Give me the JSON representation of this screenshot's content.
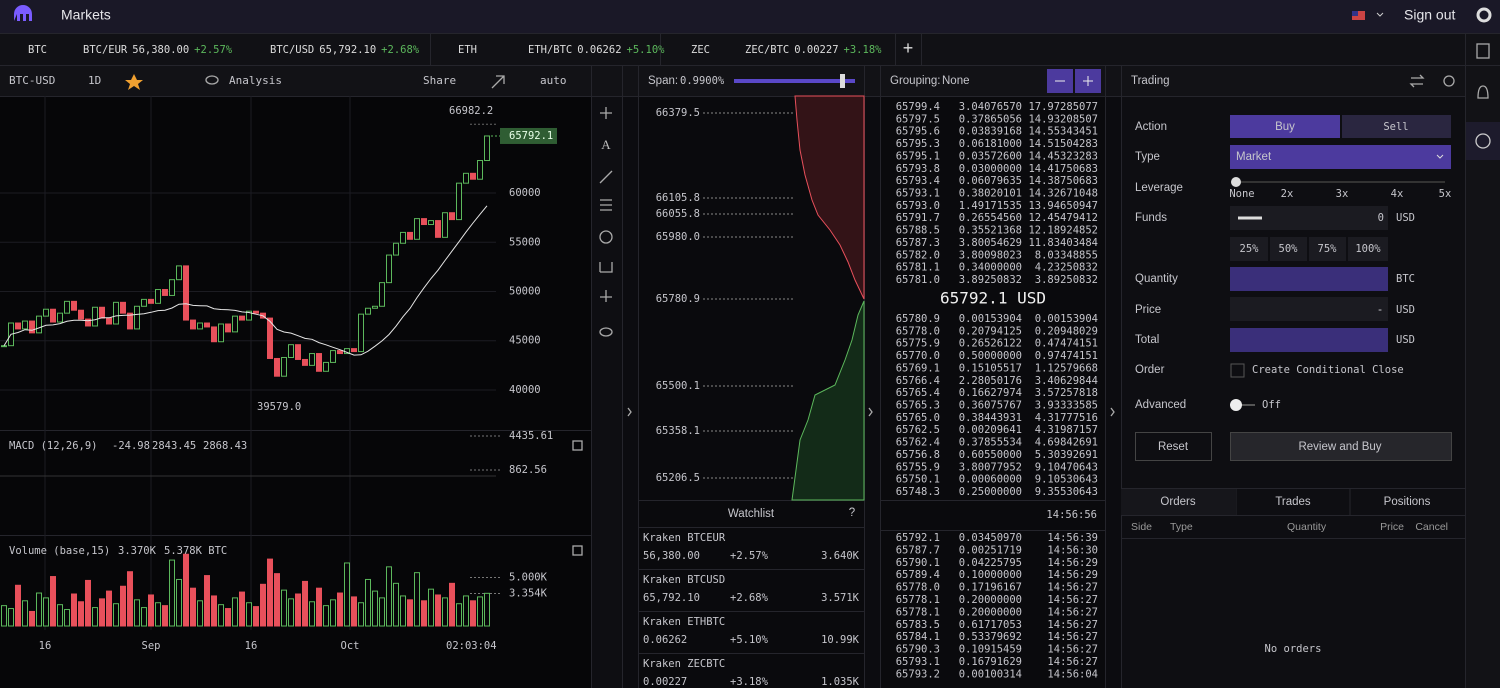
{
  "header": {
    "title": "Markets",
    "sign_out": "Sign out"
  },
  "tickers": [
    {
      "label": "BTC"
    },
    {
      "label": "BTC/EUR",
      "price": "56,380.00",
      "change": "+2.57%"
    },
    {
      "label": "BTC/USD",
      "price": "65,792.10",
      "change": "+2.68%"
    },
    {
      "label": "ETH"
    },
    {
      "label": "ETH/BTC",
      "price": "0.06262",
      "change": "+5.10%"
    },
    {
      "label": "ZEC"
    },
    {
      "label": "ZEC/BTC",
      "price": "0.00227",
      "change": "+3.18%"
    }
  ],
  "chart_toolbar": {
    "pair": "BTC-USD",
    "interval": "1D",
    "analysis": "Analysis",
    "share": "Share",
    "scale": "auto"
  },
  "price_chart": {
    "type": "candlestick",
    "up_color": "#5cb85c",
    "down_color": "#e8505b",
    "close": [
      44500,
      46800,
      46200,
      47000,
      45800,
      47500,
      48200,
      46900,
      47800,
      49000,
      48100,
      47200,
      46500,
      48400,
      47300,
      46700,
      48900,
      47800,
      46200,
      48500,
      49200,
      48800,
      50200,
      49600,
      51200,
      52600,
      47100,
      46200,
      46800,
      46400,
      44900,
      46700,
      45900,
      47500,
      47100,
      48000,
      47800,
      47300,
      43200,
      41400,
      43300,
      44600,
      43100,
      42500,
      43700,
      41900,
      42800,
      44000,
      43700,
      44200,
      43900,
      47700,
      48300,
      48500,
      50900,
      53700,
      54900,
      56000,
      55300,
      57400,
      56800,
      57200,
      55500,
      58000,
      57300,
      61000,
      62000,
      61400,
      63300,
      65792.1
    ],
    "volume": [
      2100,
      1800,
      4200,
      2600,
      1500,
      3400,
      2900,
      5100,
      2200,
      1700,
      3300,
      2500,
      4700,
      1900,
      2800,
      3600,
      2300,
      4100,
      5600,
      2700,
      1900,
      3200,
      2400,
      2100,
      6800,
      4800,
      7400,
      3900,
      2600,
      5200,
      3100,
      2200,
      1800,
      2900,
      3500,
      2400,
      2000,
      4300,
      6900,
      5400,
      3700,
      2800,
      3300,
      4600,
      2500,
      3900,
      2100,
      2700,
      3400,
      6500,
      3000,
      2400,
      4800,
      3600,
      2900,
      6100,
      4400,
      3100,
      2700,
      5500,
      2600,
      3800,
      3200,
      2900,
      4400,
      2300,
      3100,
      2600,
      3000,
      3370
    ],
    "ylim": [
      36750,
      69850
    ],
    "yticks": [
      60000,
      55000,
      50000,
      45000,
      40000
    ],
    "high": 66982.2,
    "last": 65792.1,
    "low": {
      "value": 39579,
      "label": "39579.0"
    },
    "x_labels": [
      "16",
      "Sep",
      "16",
      "Oct",
      "02:03:04"
    ],
    "macd_title": "MACD (12,26,9)",
    "macd_values": [
      "-24.98",
      "2843.45",
      "2868.43"
    ],
    "macd_ticks": [
      "4435.61",
      "862.56"
    ],
    "volume_title": "Volume (base,15)",
    "volume_values": [
      "3.370K",
      "5.378K BTC"
    ],
    "volume_ylim": [
      0,
      8870
    ],
    "volume_ticks": [
      {
        "value": 5000,
        "label": "5.000K"
      },
      {
        "value": 3354,
        "label": "3.354K"
      }
    ]
  },
  "depth": {
    "span_label": "Span:",
    "span": "0.9900%",
    "prices": [
      "66379.5",
      "66105.8",
      "66055.8",
      "65980.0",
      "65780.9",
      "65500.1",
      "65358.1",
      "65206.5"
    ],
    "watchlist_title": "Watchlist",
    "watchlist_help": "?",
    "watchlist": [
      {
        "name": "Kraken BTCEUR",
        "price": "56,380.00",
        "change": "+2.57%",
        "volume": "3.640K"
      },
      {
        "name": "Kraken BTCUSD",
        "price": "65,792.10",
        "change": "+2.68%",
        "volume": "3.571K"
      },
      {
        "name": "Kraken ETHBTC",
        "price": "0.06262",
        "change": "+5.10%",
        "volume": "10.99K"
      },
      {
        "name": "Kraken ZECBTC",
        "price": "0.00227",
        "change": "+3.18%",
        "volume": "1.035K"
      }
    ]
  },
  "order_book": {
    "grouping_label": "Grouping:",
    "grouping": "None",
    "ask_color": "#e8505b",
    "bid_color": "#5cb85c",
    "asks": [
      [
        "65799.4",
        "3.04076570",
        "17.97285077"
      ],
      [
        "65797.5",
        "0.37865056",
        "14.93208507"
      ],
      [
        "65795.6",
        "0.03839168",
        "14.55343451"
      ],
      [
        "65795.3",
        "0.06181000",
        "14.51504283"
      ],
      [
        "65795.1",
        "0.03572600",
        "14.45323283"
      ],
      [
        "65793.8",
        "0.03000000",
        "14.41750683"
      ],
      [
        "65793.4",
        "0.06079635",
        "14.38750683"
      ],
      [
        "65793.1",
        "0.38020101",
        "14.32671048"
      ],
      [
        "65793.0",
        "1.49171535",
        "13.94650947"
      ],
      [
        "65791.7",
        "0.26554560",
        "12.45479412"
      ],
      [
        "65788.5",
        "0.35521368",
        "12.18924852"
      ],
      [
        "65787.3",
        "3.80054629",
        "11.83403484"
      ],
      [
        "65782.0",
        "3.80098023",
        "8.03348855"
      ],
      [
        "65781.1",
        "0.34000000",
        "4.23250832"
      ],
      [
        "65781.0",
        "3.89250832",
        "3.89250832"
      ]
    ],
    "mid": "65792.1 USD",
    "bids": [
      [
        "65780.9",
        "0.00153904",
        "0.00153904"
      ],
      [
        "65778.0",
        "0.20794125",
        "0.20948029"
      ],
      [
        "65775.9",
        "0.26526122",
        "0.47474151"
      ],
      [
        "65770.0",
        "0.50000000",
        "0.97474151"
      ],
      [
        "65769.1",
        "0.15105517",
        "1.12579668"
      ],
      [
        "65766.4",
        "2.28050176",
        "3.40629844"
      ],
      [
        "65765.4",
        "0.16627974",
        "3.57257818"
      ],
      [
        "65765.3",
        "0.36075767",
        "3.93333585"
      ],
      [
        "65765.0",
        "0.38443931",
        "4.31777516"
      ],
      [
        "65762.5",
        "0.00209641",
        "4.31987157"
      ],
      [
        "65762.4",
        "0.37855534",
        "4.69842691"
      ],
      [
        "65756.8",
        "0.60550000",
        "5.30392691"
      ],
      [
        "65755.9",
        "3.80077952",
        "9.10470643"
      ],
      [
        "65750.1",
        "0.00060000",
        "9.10530643"
      ],
      [
        "65748.3",
        "0.25000000",
        "9.35530643"
      ]
    ],
    "time": "14:56:56",
    "trades": [
      {
        "price": "65792.1",
        "amount": "0.03450970",
        "time": "14:56:39",
        "color": "#5cb85c"
      },
      {
        "price": "65787.7",
        "amount": "0.00251719",
        "time": "14:56:30",
        "color": "#e8505b"
      },
      {
        "price": "65790.1",
        "amount": "0.04225795",
        "time": "14:56:29",
        "color": "#5cb85c"
      },
      {
        "price": "65789.4",
        "amount": "0.10000000",
        "time": "14:56:29",
        "color": "#5cb85c"
      },
      {
        "price": "65778.0",
        "amount": "0.17196167",
        "time": "14:56:27",
        "color": "#e8505b"
      },
      {
        "price": "65778.1",
        "amount": "0.20000000",
        "time": "14:56:27",
        "color": "#e8505b"
      },
      {
        "price": "65778.1",
        "amount": "0.20000000",
        "time": "14:56:27",
        "color": "#e8505b"
      },
      {
        "price": "65783.5",
        "amount": "0.61717053",
        "time": "14:56:27",
        "color": "#e8505b"
      },
      {
        "price": "65784.1",
        "amount": "0.53379692",
        "time": "14:56:27",
        "color": "#e8505b"
      },
      {
        "price": "65790.3",
        "amount": "0.10915459",
        "time": "14:56:27",
        "color": "#e8505b"
      },
      {
        "price": "65793.1",
        "amount": "0.16791629",
        "time": "14:56:27",
        "color": "#e8505b"
      },
      {
        "price": "65793.2",
        "amount": "0.00100314",
        "time": "14:56:04",
        "color": "#e8505b"
      }
    ]
  },
  "trading": {
    "title": "Trading",
    "action": "Action",
    "buy": "Buy",
    "sell": "Sell",
    "type": "Type",
    "type_value": "Market",
    "leverage": "Leverage",
    "leverage_steps": [
      "None",
      "2x",
      "3x",
      "4x",
      "5x"
    ],
    "funds": "Funds",
    "funds_value": "0",
    "usd": "USD",
    "percents": [
      "25%",
      "50%",
      "75%",
      "100%"
    ],
    "quantity": "Quantity",
    "btc": "BTC",
    "price": "Price",
    "price_value": "-",
    "total": "Total",
    "order": "Order",
    "conditional_close": "Create Conditional Close",
    "advanced": "Advanced",
    "advanced_value": "Off",
    "reset": "Reset",
    "review": "Review and Buy"
  },
  "orders": {
    "tabs": [
      "Orders",
      "Trades",
      "Positions"
    ],
    "columns": [
      "Side",
      "Type",
      "Quantity",
      "Price",
      "Cancel"
    ],
    "empty": "No orders"
  }
}
